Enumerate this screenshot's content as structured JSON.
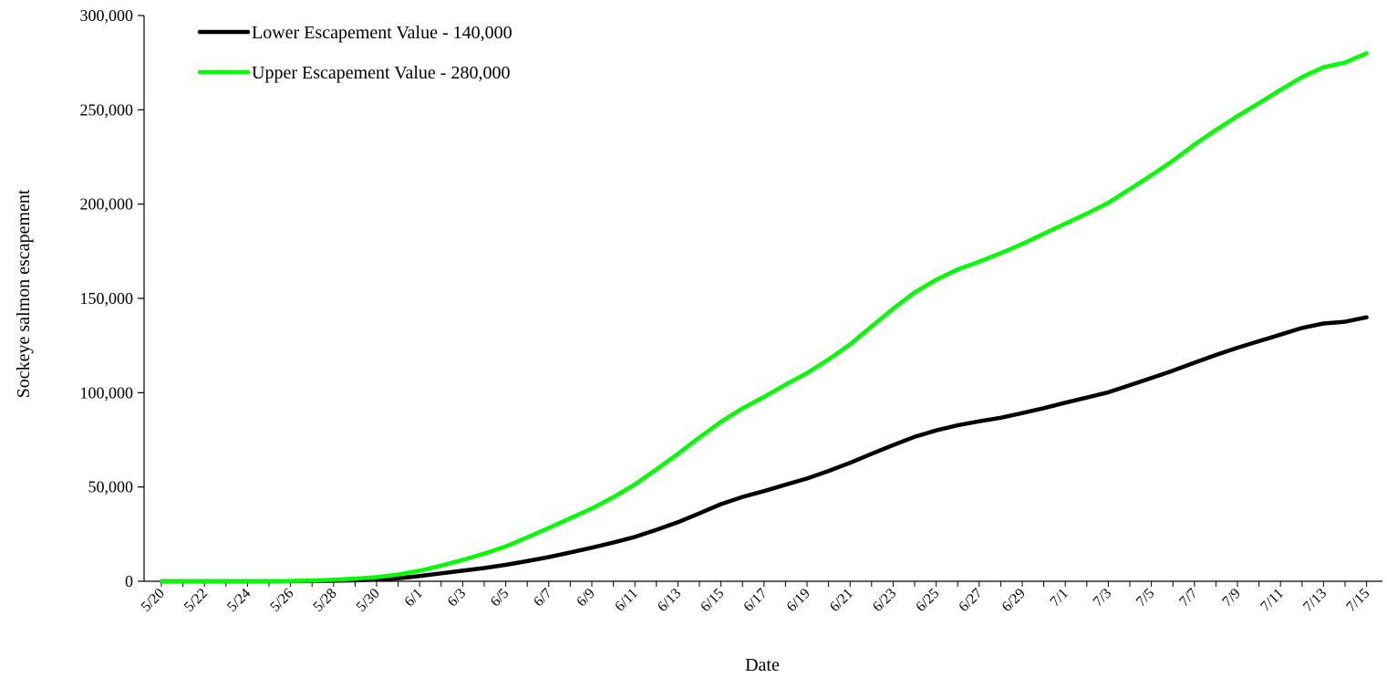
{
  "chart_data": {
    "type": "line",
    "title": "",
    "xlabel": "Date",
    "ylabel": "Sockeye salmon escapement",
    "ylim": [
      0,
      300000
    ],
    "yticks": [
      0,
      50000,
      100000,
      150000,
      200000,
      250000,
      300000
    ],
    "ytick_labels": [
      "0",
      "50,000",
      "100,000",
      "150,000",
      "200,000",
      "250,000",
      "300,000"
    ],
    "xticks": [
      "5/20",
      "5/22",
      "5/24",
      "5/26",
      "5/28",
      "5/30",
      "6/1",
      "6/3",
      "6/5",
      "6/7",
      "6/9",
      "6/11",
      "6/13",
      "6/15",
      "6/17",
      "6/19",
      "6/21",
      "6/23",
      "6/25",
      "6/27",
      "6/29",
      "7/1",
      "7/3",
      "7/5",
      "7/7",
      "7/9",
      "7/11",
      "7/13",
      "7/15"
    ],
    "grid": false,
    "legend": "top-left",
    "x": [
      "5/20",
      "5/21",
      "5/22",
      "5/23",
      "5/24",
      "5/25",
      "5/26",
      "5/27",
      "5/28",
      "5/29",
      "5/30",
      "5/31",
      "6/1",
      "6/2",
      "6/3",
      "6/4",
      "6/5",
      "6/6",
      "6/7",
      "6/8",
      "6/9",
      "6/10",
      "6/11",
      "6/12",
      "6/13",
      "6/14",
      "6/15",
      "6/16",
      "6/17",
      "6/18",
      "6/19",
      "6/20",
      "6/21",
      "6/22",
      "6/23",
      "6/24",
      "6/25",
      "6/26",
      "6/27",
      "6/28",
      "6/29",
      "6/30",
      "7/1",
      "7/2",
      "7/3",
      "7/4",
      "7/5",
      "7/6",
      "7/7",
      "7/8",
      "7/9",
      "7/10",
      "7/11",
      "7/12",
      "7/13",
      "7/14",
      "7/15"
    ],
    "series": [
      {
        "name": "Lower Escapement Value - 140,000",
        "color": "#000000",
        "values": [
          0,
          0,
          0,
          0,
          0,
          0,
          100,
          200,
          300,
          500,
          900,
          1600,
          2800,
          4200,
          5600,
          7000,
          8700,
          10700,
          12800,
          15300,
          17800,
          20500,
          23500,
          27300,
          31300,
          36000,
          40900,
          44700,
          47800,
          51200,
          54500,
          58500,
          62800,
          67600,
          72200,
          76600,
          80000,
          82700,
          84800,
          86700,
          89200,
          91800,
          94700,
          97400,
          100200,
          104000,
          107800,
          111700,
          115900,
          120000,
          123800,
          127300,
          130800,
          134300,
          136700,
          137600,
          140000
        ]
      },
      {
        "name": "Upper Escapement Value - 280,000",
        "color": "#00ff00",
        "values": [
          0,
          0,
          0,
          0,
          0,
          0,
          200,
          400,
          800,
          1400,
          2200,
          3600,
          5600,
          8300,
          11300,
          14700,
          18500,
          23300,
          28300,
          33500,
          38600,
          44600,
          51400,
          59300,
          67600,
          76300,
          84600,
          91700,
          97800,
          104300,
          110400,
          117700,
          125600,
          135200,
          144600,
          153200,
          159900,
          165400,
          169500,
          174000,
          178900,
          184300,
          189700,
          195000,
          200700,
          208000,
          215300,
          223000,
          231600,
          239300,
          246700,
          253600,
          260600,
          267400,
          272600,
          275100,
          280000
        ]
      }
    ]
  }
}
